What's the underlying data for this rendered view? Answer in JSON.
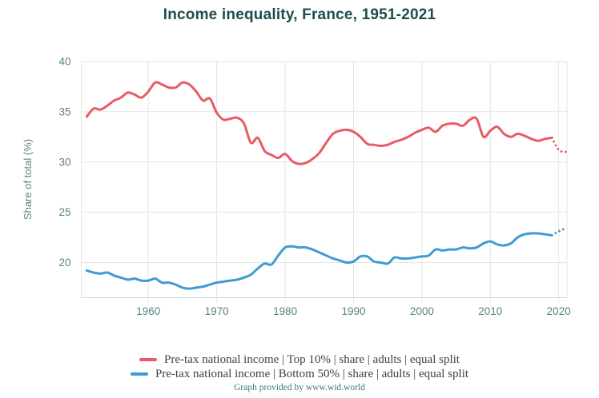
{
  "title": "Income inequality, France, 1951-2021",
  "footer": "Graph provided by www.wid.world",
  "legend": [
    {
      "label": "Pre-tax national income | Top 10% | share | adults | equal split",
      "color": "#ea5a64"
    },
    {
      "label": "Pre-tax national income | Bottom 50% | share | adults | equal split",
      "color": "#3e9bd3"
    }
  ],
  "colors": {
    "title": "#1d4d4d",
    "axis_labels": "#5a8383",
    "grid": "#e6e6e1",
    "axis_line": "#c6d5e1",
    "legend_text": "#3f3f3f",
    "footer": "#3d7d72",
    "top10": "#ea5a64",
    "bottom50": "#3e9bd3"
  },
  "chart_data": {
    "type": "line",
    "title": "Income inequality, France, 1951-2021",
    "xlabel": "",
    "ylabel": "Share of total (%)",
    "grid": true,
    "legend_position": "bottom",
    "xlim": [
      1950.2,
      2021.2
    ],
    "ylim": [
      16.5,
      40
    ],
    "xticks": [
      1960,
      1970,
      1980,
      1990,
      2000,
      2010,
      2020
    ],
    "yticks": [
      20,
      25,
      30,
      35,
      40
    ],
    "years": [
      1951,
      1952,
      1953,
      1954,
      1955,
      1956,
      1957,
      1958,
      1959,
      1960,
      1961,
      1962,
      1963,
      1964,
      1965,
      1966,
      1967,
      1968,
      1969,
      1970,
      1971,
      1972,
      1973,
      1974,
      1975,
      1976,
      1977,
      1978,
      1979,
      1980,
      1981,
      1982,
      1983,
      1984,
      1985,
      1986,
      1987,
      1988,
      1989,
      1990,
      1991,
      1992,
      1993,
      1994,
      1995,
      1996,
      1997,
      1998,
      1999,
      2000,
      2001,
      2002,
      2003,
      2004,
      2005,
      2006,
      2007,
      2008,
      2009,
      2010,
      2011,
      2012,
      2013,
      2014,
      2015,
      2016,
      2017,
      2018,
      2019,
      2020,
      2021
    ],
    "series": [
      {
        "id": "top10",
        "name": "Pre-tax national income | Top 10% | share | adults | equal split",
        "color": "#ea5a64",
        "solid_until": 2019,
        "dotted_note": "values after 2019 are drawn as dots (estimates)",
        "values": [
          34.5,
          35.3,
          35.2,
          35.6,
          36.1,
          36.4,
          36.9,
          36.7,
          36.4,
          37.0,
          37.9,
          37.7,
          37.4,
          37.4,
          37.9,
          37.7,
          37.0,
          36.1,
          36.3,
          34.9,
          34.2,
          34.3,
          34.4,
          33.8,
          31.9,
          32.4,
          31.1,
          30.7,
          30.4,
          30.8,
          30.1,
          29.8,
          29.9,
          30.3,
          30.9,
          31.9,
          32.8,
          33.1,
          33.2,
          33.0,
          32.5,
          31.8,
          31.7,
          31.6,
          31.7,
          32.0,
          32.2,
          32.5,
          32.9,
          33.2,
          33.4,
          33.0,
          33.6,
          33.8,
          33.8,
          33.6,
          34.2,
          34.3,
          32.5,
          33.1,
          33.5,
          32.8,
          32.5,
          32.8,
          32.6,
          32.3,
          32.1,
          32.3,
          32.4,
          31.2,
          31.0
        ]
      },
      {
        "id": "bottom50",
        "name": "Pre-tax national income | Bottom 50% | share | adults | equal split",
        "color": "#3e9bd3",
        "solid_until": 2019,
        "dotted_note": "values after 2019 are drawn as dots (estimates)",
        "values": [
          19.2,
          19.0,
          18.9,
          19.0,
          18.7,
          18.5,
          18.3,
          18.4,
          18.2,
          18.2,
          18.4,
          18.0,
          18.0,
          17.8,
          17.5,
          17.4,
          17.5,
          17.6,
          17.8,
          18.0,
          18.1,
          18.2,
          18.3,
          18.5,
          18.8,
          19.4,
          19.9,
          19.8,
          20.7,
          21.5,
          21.6,
          21.5,
          21.5,
          21.3,
          21.0,
          20.7,
          20.4,
          20.2,
          20.0,
          20.1,
          20.6,
          20.6,
          20.1,
          20.0,
          19.9,
          20.5,
          20.4,
          20.4,
          20.5,
          20.6,
          20.7,
          21.3,
          21.2,
          21.3,
          21.3,
          21.5,
          21.4,
          21.5,
          21.9,
          22.1,
          21.8,
          21.7,
          21.9,
          22.5,
          22.8,
          22.9,
          22.9,
          22.8,
          22.7,
          23.1,
          23.4
        ]
      }
    ]
  }
}
